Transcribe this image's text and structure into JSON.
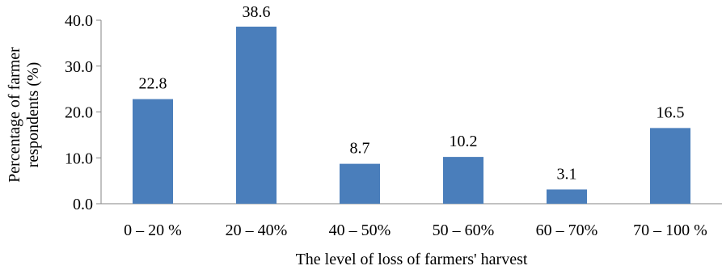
{
  "chart_data": {
    "type": "bar",
    "title": "",
    "xlabel": "The level of loss of farmers' harvest",
    "ylabel_lines": [
      "Percentage of farmer",
      "respondents (%)"
    ],
    "categories": [
      "0 – 20 %",
      "20 – 40%",
      "40 – 50%",
      "50 – 60%",
      "60 – 70%",
      "70 – 100 %"
    ],
    "values": [
      22.8,
      38.6,
      8.7,
      10.2,
      3.1,
      16.5
    ],
    "value_labels": [
      "22.8",
      "38.6",
      "8.7",
      "10.2",
      "3.1",
      "16.5"
    ],
    "ylim": [
      0,
      40
    ],
    "yticks": [
      "0.0",
      "10.0",
      "20.0",
      "30.0",
      "40.0"
    ],
    "grid": false,
    "legend": "none",
    "bar_color": "#4a7ebb"
  }
}
